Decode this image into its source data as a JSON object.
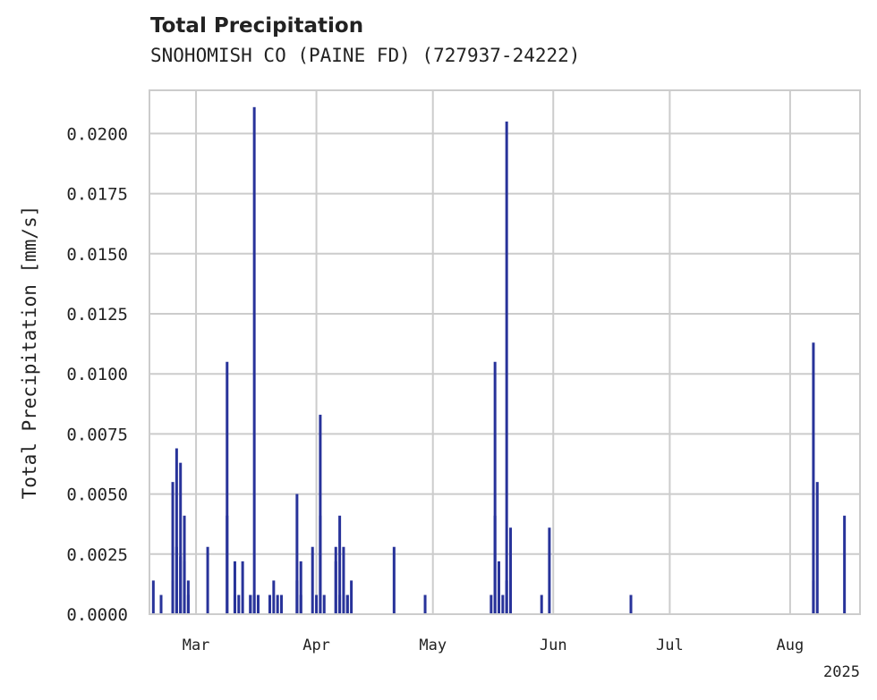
{
  "chart_data": {
    "type": "bar",
    "title": "Total Precipitation",
    "subtitle": "SNOHOMISH CO (PAINE FD) (727937-24222)",
    "xlabel": "",
    "ylabel": "Total Precipitation [mm/s]",
    "year_label": "2025",
    "x_range": [
      "2025-02-17",
      "2025-08-19"
    ],
    "ylim": [
      0,
      0.0218
    ],
    "yticks": [
      0,
      0.0025,
      0.005,
      0.0075,
      0.01,
      0.0125,
      0.015,
      0.0175,
      0.02
    ],
    "ytick_labels": [
      "0.0000",
      "0.0025",
      "0.0050",
      "0.0075",
      "0.0100",
      "0.0125",
      "0.0150",
      "0.0175",
      "0.0200"
    ],
    "xticks": [
      "2025-03-01",
      "2025-04-01",
      "2025-05-01",
      "2025-06-01",
      "2025-07-01",
      "2025-08-01"
    ],
    "xtick_labels": [
      "Mar",
      "Apr",
      "May",
      "Jun",
      "Jul",
      "Aug"
    ],
    "grid": true,
    "series": [
      {
        "color": "#28339a",
        "x": [
          "2025-02-18",
          "2025-02-20",
          "2025-02-23",
          "2025-02-23",
          "2025-02-24",
          "2025-02-24",
          "2025-02-25",
          "2025-02-25",
          "2025-02-26",
          "2025-02-26",
          "2025-02-27",
          "2025-02-27",
          "2025-03-04",
          "2025-03-09",
          "2025-03-09",
          "2025-03-11",
          "2025-03-11",
          "2025-03-12",
          "2025-03-13",
          "2025-03-15",
          "2025-03-15",
          "2025-03-16",
          "2025-03-16",
          "2025-03-17",
          "2025-03-17",
          "2025-03-20",
          "2025-03-21",
          "2025-03-22",
          "2025-03-23",
          "2025-03-27",
          "2025-03-27",
          "2025-03-28",
          "2025-03-28",
          "2025-03-31",
          "2025-04-01",
          "2025-04-02",
          "2025-04-02",
          "2025-04-03",
          "2025-04-06",
          "2025-04-06",
          "2025-04-07",
          "2025-04-07",
          "2025-04-08",
          "2025-04-09",
          "2025-04-09",
          "2025-04-10",
          "2025-04-21",
          "2025-04-29",
          "2025-05-16",
          "2025-05-17",
          "2025-05-17",
          "2025-05-18",
          "2025-05-19",
          "2025-05-20",
          "2025-05-20",
          "2025-05-21",
          "2025-05-21",
          "2025-05-29",
          "2025-05-31",
          "2025-06-21",
          "2025-08-07",
          "2025-08-07",
          "2025-08-08",
          "2025-08-15"
        ],
        "values": [
          0.0014,
          0.0008,
          0.0014,
          0.0055,
          0.0069,
          0.0028,
          0.0063,
          0.0024,
          0.0041,
          0.0022,
          0.0014,
          0.0008,
          0.0028,
          0.0105,
          0.0041,
          0.0008,
          0.0022,
          0.0008,
          0.0022,
          0.0008,
          0.0008,
          0.0211,
          0.0008,
          0.0008,
          0.0008,
          0.0008,
          0.0014,
          0.0008,
          0.0008,
          0.005,
          0.0014,
          0.0008,
          0.0022,
          0.0028,
          0.0008,
          0.0083,
          0.0041,
          0.0008,
          0.0028,
          0.0022,
          0.0041,
          0.0008,
          0.0028,
          0.0008,
          0.0008,
          0.0014,
          0.0028,
          0.0008,
          0.0008,
          0.0041,
          0.0105,
          0.0022,
          0.0008,
          0.0205,
          0.0014,
          0.0036,
          0.0014,
          0.0008,
          0.0036,
          0.0008,
          0.0014,
          0.0113,
          0.0055,
          0.0041
        ]
      }
    ]
  }
}
